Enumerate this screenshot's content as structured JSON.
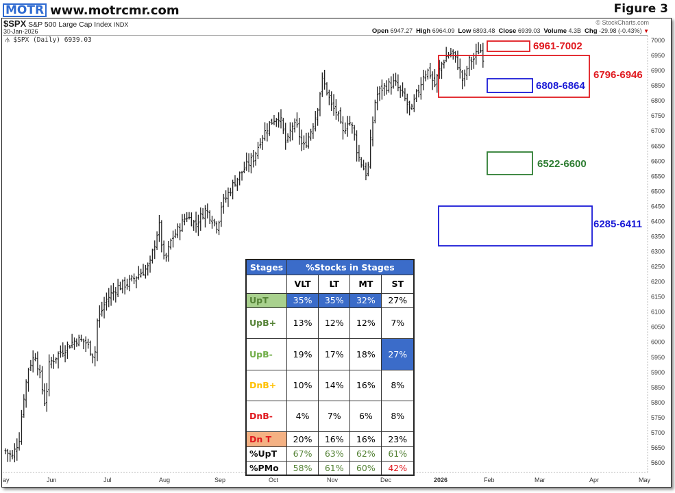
{
  "header": {
    "logo_text": "MOTR",
    "site_url": "www.motrcmr.com",
    "figure_label": "Figure 3"
  },
  "chart_header": {
    "symbol": "$SPX",
    "name": "S&P 500 Large Cap Index",
    "exchange": "INDX",
    "date": "30-Jan-2026",
    "copyright": "© StockCharts.com",
    "open_label": "Open",
    "open": "6947.27",
    "high_label": "High",
    "high": "6964.09",
    "low_label": "Low",
    "low": "6893.48",
    "close_label": "Close",
    "close": "6939.03",
    "volume_label": "Volume",
    "volume": "4.3B",
    "chg_label": "Chg",
    "chg": "-29.98 (-0.43%)",
    "down_arrow": "▼",
    "legend": "$SPX (Daily) 6939.03"
  },
  "zones": [
    {
      "label": "6961-7002",
      "color": "#e0191f"
    },
    {
      "label": "6796-6946",
      "color": "#e0191f"
    },
    {
      "label": "6808-6864",
      "color": "#1a1ad6"
    },
    {
      "label": "6522-6600",
      "color": "#2e7d32"
    },
    {
      "label": "6285-6411",
      "color": "#1a1ad6"
    }
  ],
  "table": {
    "header_stages": "Stages",
    "header_pct": "%Stocks in Stages",
    "columns": [
      "VLT",
      "LT",
      "MT",
      "ST"
    ],
    "rows": [
      {
        "label": "UpT",
        "values": [
          "35%",
          "35%",
          "32%",
          "27%"
        ]
      },
      {
        "label": "UpB+",
        "values": [
          "13%",
          "12%",
          "12%",
          "7%"
        ]
      },
      {
        "label": "UpB-",
        "values": [
          "19%",
          "17%",
          "18%",
          "27%"
        ]
      },
      {
        "label": "DnB+",
        "values": [
          "10%",
          "14%",
          "16%",
          "8%"
        ]
      },
      {
        "label": "DnB-",
        "values": [
          "4%",
          "7%",
          "6%",
          "8%"
        ]
      },
      {
        "label": "Dn T",
        "values": [
          "20%",
          "16%",
          "16%",
          "23%"
        ]
      },
      {
        "label": "%UpT",
        "values": [
          "67%",
          "63%",
          "62%",
          "61%"
        ]
      },
      {
        "label": "%PMo",
        "values": [
          "58%",
          "61%",
          "60%",
          "42%"
        ]
      }
    ],
    "colors": {
      "highlight_blue": "#3b6cc9",
      "upt_bg": "#a9d18e",
      "upt_text": "#548235",
      "upb_plus_text": "#548235",
      "upb_minus_text": "#70ad47",
      "dnb_plus_text": "#ffc000",
      "dnb_minus_text": "#e0191f",
      "dnt_bg": "#f4b183",
      "dnt_text": "#e0191f",
      "green_value": "#548235",
      "red_value": "#e0191f"
    }
  },
  "chart_data": {
    "type": "ohlc",
    "title": "$SPX S&P 500 Large Cap Index INDX (Daily)",
    "last_close": 6939.03,
    "xlabel": "",
    "ylabel": "",
    "x_ticks": [
      "ay",
      "Jun",
      "Jul",
      "Aug",
      "Sep",
      "Oct",
      "Nov",
      "Dec",
      "2026",
      "Feb",
      "Mar",
      "Apr",
      "May"
    ],
    "y_ticks": [
      5600,
      5650,
      5700,
      5750,
      5800,
      5850,
      5900,
      5950,
      6000,
      6050,
      6100,
      6150,
      6200,
      6250,
      6300,
      6350,
      6400,
      6450,
      6500,
      6550,
      6600,
      6650,
      6700,
      6750,
      6800,
      6850,
      6900,
      6950,
      7000
    ],
    "ylim": [
      5575,
      7010
    ],
    "approx_monthly_closes": {
      "May-2025": 5911,
      "Jun-2025": 6205,
      "Jul-2025": 6339,
      "Aug-2025": 6460,
      "Sep-2025": 6688,
      "Oct-2025": 6840,
      "Nov-2025": 6849,
      "Dec-2025": 6845,
      "Jan-2026": 6939
    },
    "zones": [
      {
        "low": 6961,
        "high": 7002,
        "color": "red"
      },
      {
        "low": 6796,
        "high": 6946,
        "color": "red"
      },
      {
        "low": 6808,
        "high": 6864,
        "color": "blue"
      },
      {
        "low": 6522,
        "high": 6600,
        "color": "green"
      },
      {
        "low": 6285,
        "high": 6411,
        "color": "blue"
      }
    ],
    "grid": false,
    "legend_position": "top-left"
  }
}
